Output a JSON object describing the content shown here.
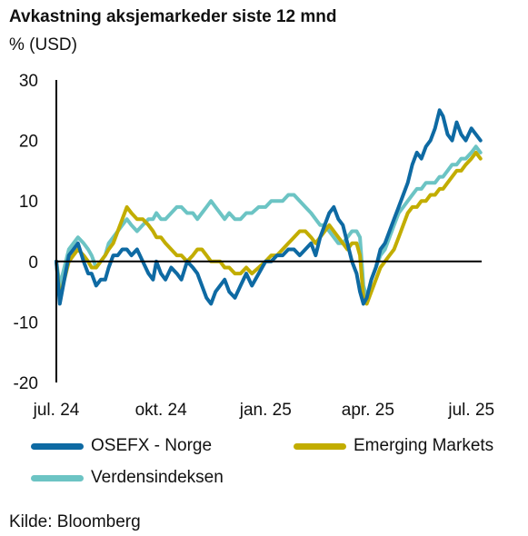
{
  "chart_data": {
    "type": "line",
    "title": "Avkastning aksjemarkeder siste 12 mnd",
    "ylabel": "% (USD)",
    "xlabel": "",
    "ylim": [
      -20,
      30
    ],
    "yticks": [
      30,
      20,
      10,
      0,
      -10,
      -20
    ],
    "xlim": [
      "2024-07-01",
      "2025-07-10"
    ],
    "xticks": [
      {
        "date": "2024-07-01",
        "label": "jul. 24"
      },
      {
        "date": "2024-10-01",
        "label": "okt. 24"
      },
      {
        "date": "2025-01-01",
        "label": "jan. 25"
      },
      {
        "date": "2025-04-01",
        "label": "apr. 25"
      },
      {
        "date": "2025-07-01",
        "label": "jul. 25"
      }
    ],
    "grid": false,
    "legend_position": "bottom",
    "series": [
      {
        "name": "OSEFX - Norge",
        "color": "#0e6aa3",
        "points": [
          [
            "2024-07-01",
            0
          ],
          [
            "2024-07-04",
            -7
          ],
          [
            "2024-07-08",
            -3
          ],
          [
            "2024-07-12",
            1
          ],
          [
            "2024-07-16",
            2
          ],
          [
            "2024-07-20",
            3
          ],
          [
            "2024-07-25",
            0
          ],
          [
            "2024-07-29",
            -2
          ],
          [
            "2024-08-01",
            -2
          ],
          [
            "2024-08-05",
            -4
          ],
          [
            "2024-08-09",
            -3
          ],
          [
            "2024-08-13",
            -3
          ],
          [
            "2024-08-16",
            -1
          ],
          [
            "2024-08-20",
            1
          ],
          [
            "2024-08-24",
            1
          ],
          [
            "2024-08-28",
            2
          ],
          [
            "2024-09-01",
            2
          ],
          [
            "2024-09-05",
            1
          ],
          [
            "2024-09-10",
            2
          ],
          [
            "2024-09-15",
            0
          ],
          [
            "2024-09-20",
            -2
          ],
          [
            "2024-09-24",
            -3
          ],
          [
            "2024-09-27",
            0
          ],
          [
            "2024-10-01",
            -2
          ],
          [
            "2024-10-05",
            -3
          ],
          [
            "2024-10-10",
            -1
          ],
          [
            "2024-10-15",
            -2
          ],
          [
            "2024-10-19",
            -3
          ],
          [
            "2024-10-24",
            0
          ],
          [
            "2024-10-29",
            -1
          ],
          [
            "2024-11-02",
            -2
          ],
          [
            "2024-11-06",
            -4
          ],
          [
            "2024-11-10",
            -6
          ],
          [
            "2024-11-14",
            -7
          ],
          [
            "2024-11-18",
            -5
          ],
          [
            "2024-11-22",
            -4
          ],
          [
            "2024-11-26",
            -3
          ],
          [
            "2024-11-30",
            -5
          ],
          [
            "2024-12-05",
            -6
          ],
          [
            "2024-12-10",
            -4
          ],
          [
            "2024-12-15",
            -2
          ],
          [
            "2024-12-20",
            -4
          ],
          [
            "2024-12-26",
            -2
          ],
          [
            "2025-01-01",
            0
          ],
          [
            "2025-01-06",
            0
          ],
          [
            "2025-01-11",
            1
          ],
          [
            "2025-01-16",
            1
          ],
          [
            "2025-01-21",
            2
          ],
          [
            "2025-01-26",
            2
          ],
          [
            "2025-01-31",
            1
          ],
          [
            "2025-02-05",
            2
          ],
          [
            "2025-02-10",
            3
          ],
          [
            "2025-02-14",
            1
          ],
          [
            "2025-02-18",
            4
          ],
          [
            "2025-02-22",
            6
          ],
          [
            "2025-02-26",
            8
          ],
          [
            "2025-03-02",
            9
          ],
          [
            "2025-03-06",
            7
          ],
          [
            "2025-03-10",
            6
          ],
          [
            "2025-03-14",
            3
          ],
          [
            "2025-03-18",
            0
          ],
          [
            "2025-03-22",
            -2
          ],
          [
            "2025-03-25",
            -5
          ],
          [
            "2025-03-28",
            -7
          ],
          [
            "2025-03-31",
            -6
          ],
          [
            "2025-04-04",
            -3
          ],
          [
            "2025-04-08",
            -1
          ],
          [
            "2025-04-12",
            2
          ],
          [
            "2025-04-16",
            3
          ],
          [
            "2025-04-20",
            5
          ],
          [
            "2025-04-24",
            7
          ],
          [
            "2025-04-28",
            9
          ],
          [
            "2025-05-02",
            11
          ],
          [
            "2025-05-06",
            13
          ],
          [
            "2025-05-10",
            16
          ],
          [
            "2025-05-14",
            18
          ],
          [
            "2025-05-18",
            17
          ],
          [
            "2025-05-22",
            19
          ],
          [
            "2025-05-26",
            20
          ],
          [
            "2025-05-30",
            22
          ],
          [
            "2025-06-03",
            25
          ],
          [
            "2025-06-06",
            24
          ],
          [
            "2025-06-10",
            21
          ],
          [
            "2025-06-14",
            20
          ],
          [
            "2025-06-18",
            23
          ],
          [
            "2025-06-22",
            21
          ],
          [
            "2025-06-26",
            20
          ],
          [
            "2025-07-01",
            22
          ],
          [
            "2025-07-05",
            21
          ],
          [
            "2025-07-09",
            20
          ]
        ]
      },
      {
        "name": "Emerging Markets",
        "color": "#c2ad00",
        "points": [
          [
            "2024-07-01",
            0
          ],
          [
            "2024-07-04",
            -6
          ],
          [
            "2024-07-08",
            -3
          ],
          [
            "2024-07-12",
            0
          ],
          [
            "2024-07-16",
            1
          ],
          [
            "2024-07-20",
            2
          ],
          [
            "2024-07-25",
            1
          ],
          [
            "2024-07-29",
            0
          ],
          [
            "2024-08-01",
            -1
          ],
          [
            "2024-08-05",
            -1
          ],
          [
            "2024-08-09",
            0
          ],
          [
            "2024-08-13",
            1
          ],
          [
            "2024-08-16",
            2
          ],
          [
            "2024-08-20",
            3
          ],
          [
            "2024-08-24",
            5
          ],
          [
            "2024-08-28",
            7
          ],
          [
            "2024-09-01",
            9
          ],
          [
            "2024-09-05",
            8
          ],
          [
            "2024-09-10",
            7
          ],
          [
            "2024-09-15",
            7
          ],
          [
            "2024-09-20",
            6
          ],
          [
            "2024-09-24",
            5
          ],
          [
            "2024-09-27",
            4
          ],
          [
            "2024-10-01",
            4
          ],
          [
            "2024-10-05",
            3
          ],
          [
            "2024-10-10",
            2
          ],
          [
            "2024-10-15",
            1
          ],
          [
            "2024-10-19",
            1
          ],
          [
            "2024-10-24",
            0
          ],
          [
            "2024-10-29",
            1
          ],
          [
            "2024-11-02",
            2
          ],
          [
            "2024-11-06",
            2
          ],
          [
            "2024-11-10",
            1
          ],
          [
            "2024-11-14",
            0
          ],
          [
            "2024-11-18",
            0
          ],
          [
            "2024-11-22",
            0
          ],
          [
            "2024-11-26",
            -1
          ],
          [
            "2024-11-30",
            -1
          ],
          [
            "2024-12-05",
            -2
          ],
          [
            "2024-12-10",
            -2
          ],
          [
            "2024-12-15",
            -1
          ],
          [
            "2024-12-20",
            -2
          ],
          [
            "2024-12-26",
            -1
          ],
          [
            "2025-01-01",
            0
          ],
          [
            "2025-01-06",
            1
          ],
          [
            "2025-01-11",
            1
          ],
          [
            "2025-01-16",
            2
          ],
          [
            "2025-01-21",
            3
          ],
          [
            "2025-01-26",
            4
          ],
          [
            "2025-01-31",
            5
          ],
          [
            "2025-02-05",
            5
          ],
          [
            "2025-02-10",
            4
          ],
          [
            "2025-02-14",
            3
          ],
          [
            "2025-02-18",
            4
          ],
          [
            "2025-02-22",
            5
          ],
          [
            "2025-02-26",
            6
          ],
          [
            "2025-03-02",
            5
          ],
          [
            "2025-03-06",
            4
          ],
          [
            "2025-03-10",
            3
          ],
          [
            "2025-03-14",
            2
          ],
          [
            "2025-03-18",
            3
          ],
          [
            "2025-03-22",
            3
          ],
          [
            "2025-03-25",
            1
          ],
          [
            "2025-03-28",
            -6
          ],
          [
            "2025-03-31",
            -7
          ],
          [
            "2025-04-04",
            -5
          ],
          [
            "2025-04-08",
            -3
          ],
          [
            "2025-04-12",
            -1
          ],
          [
            "2025-04-16",
            0
          ],
          [
            "2025-04-20",
            1
          ],
          [
            "2025-04-24",
            2
          ],
          [
            "2025-04-28",
            4
          ],
          [
            "2025-05-02",
            6
          ],
          [
            "2025-05-06",
            8
          ],
          [
            "2025-05-10",
            9
          ],
          [
            "2025-05-14",
            9
          ],
          [
            "2025-05-18",
            10
          ],
          [
            "2025-05-22",
            10
          ],
          [
            "2025-05-26",
            11
          ],
          [
            "2025-05-30",
            11
          ],
          [
            "2025-06-03",
            12
          ],
          [
            "2025-06-06",
            12
          ],
          [
            "2025-06-10",
            13
          ],
          [
            "2025-06-14",
            14
          ],
          [
            "2025-06-18",
            15
          ],
          [
            "2025-06-22",
            15
          ],
          [
            "2025-06-26",
            16
          ],
          [
            "2025-07-01",
            17
          ],
          [
            "2025-07-05",
            18
          ],
          [
            "2025-07-09",
            17
          ]
        ]
      },
      {
        "name": "Verdensindeksen",
        "color": "#6cc4c4",
        "points": [
          [
            "2024-07-01",
            0
          ],
          [
            "2024-07-04",
            -4
          ],
          [
            "2024-07-08",
            -1
          ],
          [
            "2024-07-12",
            2
          ],
          [
            "2024-07-16",
            3
          ],
          [
            "2024-07-20",
            4
          ],
          [
            "2024-07-25",
            3
          ],
          [
            "2024-07-29",
            2
          ],
          [
            "2024-08-01",
            1
          ],
          [
            "2024-08-05",
            -1
          ],
          [
            "2024-08-09",
            0
          ],
          [
            "2024-08-13",
            1
          ],
          [
            "2024-08-16",
            3
          ],
          [
            "2024-08-20",
            4
          ],
          [
            "2024-08-24",
            5
          ],
          [
            "2024-08-28",
            6
          ],
          [
            "2024-09-01",
            7
          ],
          [
            "2024-09-05",
            6
          ],
          [
            "2024-09-10",
            5
          ],
          [
            "2024-09-15",
            6
          ],
          [
            "2024-09-20",
            7
          ],
          [
            "2024-09-24",
            7
          ],
          [
            "2024-09-27",
            8
          ],
          [
            "2024-10-01",
            7
          ],
          [
            "2024-10-05",
            7
          ],
          [
            "2024-10-10",
            8
          ],
          [
            "2024-10-15",
            9
          ],
          [
            "2024-10-19",
            9
          ],
          [
            "2024-10-24",
            8
          ],
          [
            "2024-10-29",
            8
          ],
          [
            "2024-11-02",
            7
          ],
          [
            "2024-11-06",
            8
          ],
          [
            "2024-11-10",
            9
          ],
          [
            "2024-11-14",
            10
          ],
          [
            "2024-11-18",
            9
          ],
          [
            "2024-11-22",
            8
          ],
          [
            "2024-11-26",
            7
          ],
          [
            "2024-11-30",
            8
          ],
          [
            "2024-12-05",
            7
          ],
          [
            "2024-12-10",
            7
          ],
          [
            "2024-12-15",
            8
          ],
          [
            "2024-12-20",
            8
          ],
          [
            "2024-12-26",
            9
          ],
          [
            "2025-01-01",
            9
          ],
          [
            "2025-01-06",
            10
          ],
          [
            "2025-01-11",
            10
          ],
          [
            "2025-01-16",
            10
          ],
          [
            "2025-01-21",
            11
          ],
          [
            "2025-01-26",
            11
          ],
          [
            "2025-01-31",
            10
          ],
          [
            "2025-02-05",
            9
          ],
          [
            "2025-02-10",
            8
          ],
          [
            "2025-02-14",
            7
          ],
          [
            "2025-02-18",
            6
          ],
          [
            "2025-02-22",
            6
          ],
          [
            "2025-02-26",
            5
          ],
          [
            "2025-03-02",
            4
          ],
          [
            "2025-03-06",
            3
          ],
          [
            "2025-03-10",
            3
          ],
          [
            "2025-03-14",
            4
          ],
          [
            "2025-03-18",
            5
          ],
          [
            "2025-03-22",
            5
          ],
          [
            "2025-03-25",
            4
          ],
          [
            "2025-03-28",
            -4
          ],
          [
            "2025-03-31",
            -6
          ],
          [
            "2025-04-04",
            -3
          ],
          [
            "2025-04-08",
            -1
          ],
          [
            "2025-04-12",
            1
          ],
          [
            "2025-04-16",
            2
          ],
          [
            "2025-04-20",
            4
          ],
          [
            "2025-04-24",
            6
          ],
          [
            "2025-04-28",
            8
          ],
          [
            "2025-05-02",
            9
          ],
          [
            "2025-05-06",
            10
          ],
          [
            "2025-05-10",
            11
          ],
          [
            "2025-05-14",
            12
          ],
          [
            "2025-05-18",
            12
          ],
          [
            "2025-05-22",
            13
          ],
          [
            "2025-05-26",
            13
          ],
          [
            "2025-05-30",
            13
          ],
          [
            "2025-06-03",
            14
          ],
          [
            "2025-06-06",
            14
          ],
          [
            "2025-06-10",
            15
          ],
          [
            "2025-06-14",
            16
          ],
          [
            "2025-06-18",
            16
          ],
          [
            "2025-06-22",
            17
          ],
          [
            "2025-06-26",
            17
          ],
          [
            "2025-07-01",
            18
          ],
          [
            "2025-07-05",
            19
          ],
          [
            "2025-07-09",
            18
          ]
        ]
      }
    ]
  },
  "source_note": "Kilde: Bloomberg"
}
